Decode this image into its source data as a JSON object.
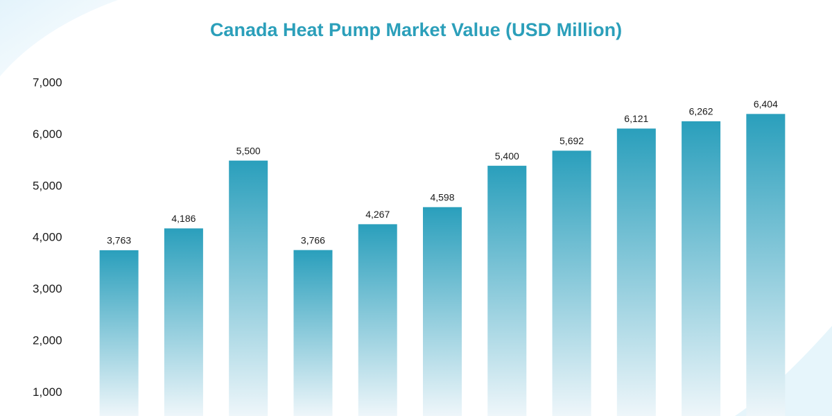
{
  "chart_data": {
    "type": "bar",
    "title": "Canada Heat Pump Market Value (USD Million)",
    "categories": [
      null,
      null,
      null,
      null,
      null,
      null,
      null,
      null,
      null,
      null,
      null
    ],
    "values": [
      3763,
      4186,
      5500,
      3766,
      4267,
      4598,
      5400,
      5692,
      6121,
      6262,
      6404
    ],
    "value_labels": [
      "3,763",
      "4,186",
      "5,500",
      "3,766",
      "4,267",
      "4,598",
      "5,400",
      "5,692",
      "6,121",
      "6,262",
      "6,404"
    ],
    "color": "#2a9fbc",
    "ylim": [
      550,
      7000
    ],
    "yticks": [
      {
        "value": 1000,
        "label": "1,000"
      },
      {
        "value": 2000,
        "label": "2,000"
      },
      {
        "value": 3000,
        "label": "3,000"
      },
      {
        "value": 4000,
        "label": "4,000"
      },
      {
        "value": 5000,
        "label": "5,000"
      },
      {
        "value": 6000,
        "label": "6,000"
      },
      {
        "value": 7000,
        "label": "7,000"
      }
    ],
    "grid": false
  }
}
